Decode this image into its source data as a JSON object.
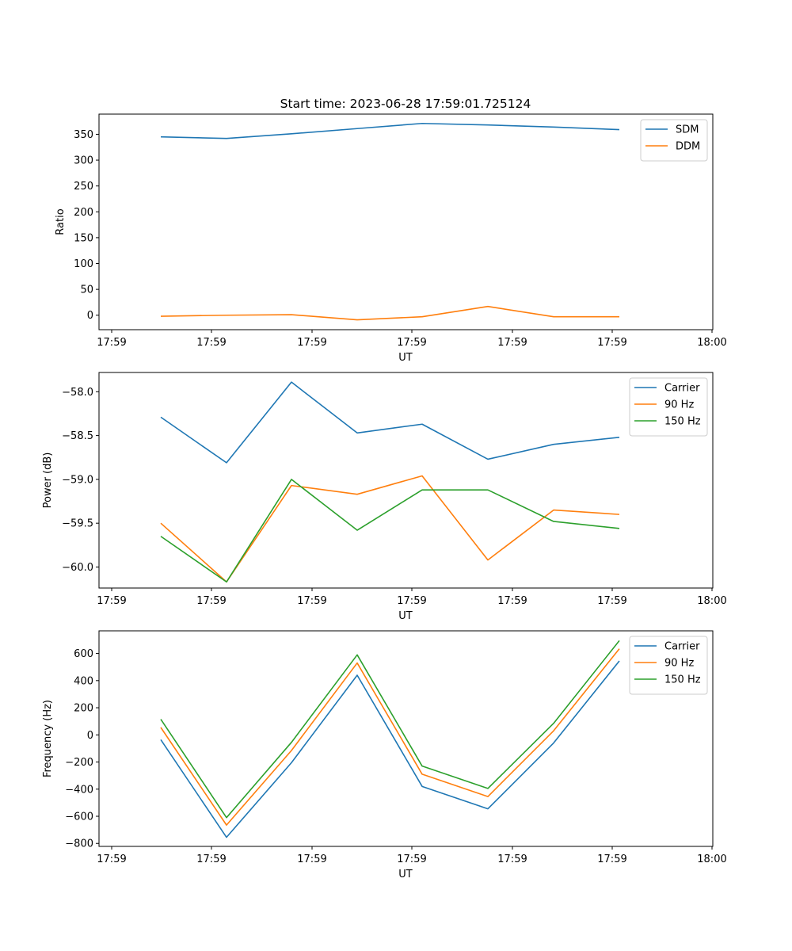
{
  "figure": {
    "title": "Start time: 2023-06-28 17:59:01.725124"
  },
  "colors": {
    "blue": "#1f77b4",
    "orange": "#ff7f0e",
    "green": "#2ca02c"
  },
  "chart_data": [
    {
      "type": "line",
      "title": "Start time: 2023-06-28 17:59:01.725124",
      "xlabel": "UT",
      "ylabel": "Ratio",
      "xticklabels": [
        "17:59",
        "17:59",
        "17:59",
        "17:59",
        "17:59",
        "17:59",
        "18:00"
      ],
      "ylim": [
        -28,
        389
      ],
      "yticks": [
        0,
        50,
        100,
        150,
        200,
        250,
        300,
        350
      ],
      "legend": "top-right",
      "series": [
        {
          "name": "SDM",
          "color": "blue",
          "values": [
            345,
            342,
            351,
            361,
            371,
            368,
            364,
            359
          ]
        },
        {
          "name": "DDM",
          "color": "orange",
          "values": [
            -2,
            0,
            1,
            -9,
            -3,
            17,
            -3,
            -3
          ]
        }
      ]
    },
    {
      "type": "line",
      "xlabel": "UT",
      "ylabel": "Power (dB)",
      "xticklabels": [
        "17:59",
        "17:59",
        "17:59",
        "17:59",
        "17:59",
        "17:59",
        "18:00"
      ],
      "ylim": [
        -60.24,
        -57.78
      ],
      "yticks": [
        -60.0,
        -59.5,
        -59.0,
        -58.5,
        -58.0
      ],
      "ytick_labels": [
        "−60.0",
        "−59.5",
        "−59.0",
        "−58.5",
        "−58.0"
      ],
      "legend": "top-right",
      "series": [
        {
          "name": "Carrier",
          "color": "blue",
          "values": [
            -58.29,
            -58.81,
            -57.89,
            -58.47,
            -58.37,
            -58.77,
            -58.6,
            -58.52
          ]
        },
        {
          "name": "90 Hz",
          "color": "orange",
          "values": [
            -59.5,
            -60.17,
            -59.07,
            -59.17,
            -58.96,
            -59.92,
            -59.35,
            -59.4
          ]
        },
        {
          "name": "150 Hz",
          "color": "green",
          "values": [
            -59.65,
            -60.17,
            -59.0,
            -59.58,
            -59.12,
            -59.12,
            -59.48,
            -59.56
          ]
        }
      ]
    },
    {
      "type": "line",
      "xlabel": "UT",
      "ylabel": "Frequency (Hz)",
      "xticklabels": [
        "17:59",
        "17:59",
        "17:59",
        "17:59",
        "17:59",
        "17:59",
        "18:00"
      ],
      "ylim": [
        -822,
        767
      ],
      "yticks": [
        -800,
        -600,
        -400,
        -200,
        0,
        200,
        400,
        600
      ],
      "ytick_labels": [
        "−800",
        "−600",
        "−400",
        "−200",
        "0",
        "200",
        "400",
        "600"
      ],
      "legend": "top-right",
      "series": [
        {
          "name": "Carrier",
          "color": "blue",
          "values": [
            -35,
            -755,
            -205,
            440,
            -380,
            -545,
            -60,
            545
          ]
        },
        {
          "name": "90 Hz",
          "color": "orange",
          "values": [
            55,
            -665,
            -115,
            530,
            -290,
            -455,
            30,
            635
          ]
        },
        {
          "name": "150 Hz",
          "color": "green",
          "values": [
            115,
            -610,
            -55,
            590,
            -230,
            -395,
            85,
            695
          ]
        }
      ]
    }
  ]
}
